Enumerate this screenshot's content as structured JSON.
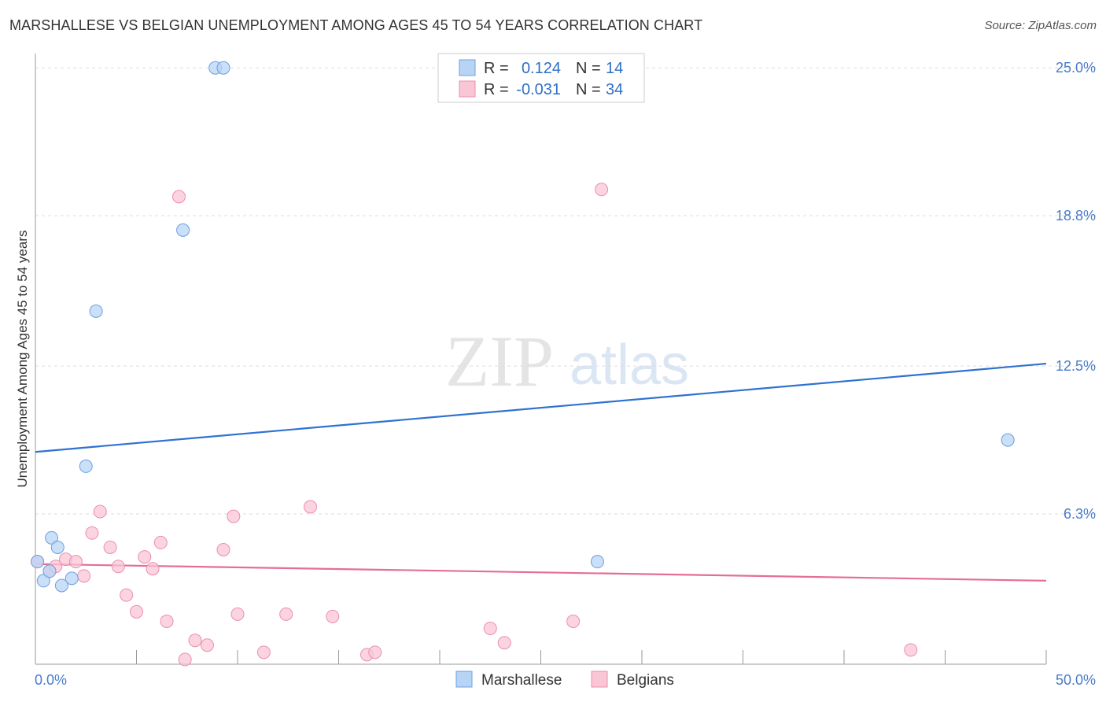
{
  "title": "MARSHALLESE VS BELGIAN UNEMPLOYMENT AMONG AGES 45 TO 54 YEARS CORRELATION CHART",
  "source": "Source: ZipAtlas.com",
  "watermark": {
    "zip": "ZIP",
    "atlas": "atlas"
  },
  "colors": {
    "marshallese_fill": "#b8d4f5",
    "marshallese_stroke": "#6c9fe0",
    "marshallese_line": "#2f72d0",
    "belgians_fill": "#f9c6d6",
    "belgians_stroke": "#eb8fae",
    "belgians_line": "#e46e98",
    "grid": "#dddddd",
    "tick_text": "#4a7cc9"
  },
  "legend": {
    "rows": [
      {
        "r_label": "R =",
        "r_value": "0.124",
        "n_label": "N =",
        "n_value": "14"
      },
      {
        "r_label": "R =",
        "r_value": "-0.031",
        "n_label": "N =",
        "n_value": "34"
      }
    ]
  },
  "chart_data": {
    "type": "scatter",
    "title": "MARSHALLESE VS BELGIAN UNEMPLOYMENT AMONG AGES 45 TO 54 YEARS CORRELATION CHART",
    "xlabel": "",
    "ylabel": "Unemployment Among Ages 45 to 54 years",
    "xlim": [
      0,
      50
    ],
    "ylim": [
      0,
      25.6
    ],
    "x_tick_labels": [
      "0.0%",
      "50.0%"
    ],
    "y_ticks": [
      6.3,
      12.5,
      18.8,
      25.0
    ],
    "y_tick_labels": [
      "6.3%",
      "12.5%",
      "18.8%",
      "25.0%"
    ],
    "series": [
      {
        "name": "Marshallese",
        "r": 0.124,
        "n": 14,
        "trend": {
          "x": [
            0,
            50
          ],
          "y": [
            8.9,
            12.6
          ]
        },
        "points": [
          {
            "x": 0.1,
            "y": 4.3
          },
          {
            "x": 0.4,
            "y": 3.5
          },
          {
            "x": 0.7,
            "y": 3.9
          },
          {
            "x": 0.8,
            "y": 5.3
          },
          {
            "x": 1.1,
            "y": 4.9
          },
          {
            "x": 1.3,
            "y": 3.3
          },
          {
            "x": 1.8,
            "y": 3.6
          },
          {
            "x": 2.5,
            "y": 8.3
          },
          {
            "x": 3.0,
            "y": 14.8
          },
          {
            "x": 7.3,
            "y": 18.2
          },
          {
            "x": 8.9,
            "y": 25.0
          },
          {
            "x": 9.3,
            "y": 25.0
          },
          {
            "x": 27.8,
            "y": 4.3
          },
          {
            "x": 48.1,
            "y": 9.4
          }
        ]
      },
      {
        "name": "Belgians",
        "r": -0.031,
        "n": 34,
        "trend": {
          "x": [
            0,
            50
          ],
          "y": [
            4.2,
            3.5
          ]
        },
        "points": [
          {
            "x": 0.1,
            "y": 4.3
          },
          {
            "x": 0.7,
            "y": 3.9
          },
          {
            "x": 1.0,
            "y": 4.1
          },
          {
            "x": 1.5,
            "y": 4.4
          },
          {
            "x": 2.0,
            "y": 4.3
          },
          {
            "x": 2.4,
            "y": 3.7
          },
          {
            "x": 2.8,
            "y": 5.5
          },
          {
            "x": 3.2,
            "y": 6.4
          },
          {
            "x": 3.7,
            "y": 4.9
          },
          {
            "x": 4.1,
            "y": 4.1
          },
          {
            "x": 4.5,
            "y": 2.9
          },
          {
            "x": 5.0,
            "y": 2.2
          },
          {
            "x": 5.4,
            "y": 4.5
          },
          {
            "x": 5.8,
            "y": 4.0
          },
          {
            "x": 6.2,
            "y": 5.1
          },
          {
            "x": 6.5,
            "y": 1.8
          },
          {
            "x": 7.1,
            "y": 19.6
          },
          {
            "x": 7.4,
            "y": 0.2
          },
          {
            "x": 7.9,
            "y": 1.0
          },
          {
            "x": 8.5,
            "y": 0.8
          },
          {
            "x": 9.3,
            "y": 4.8
          },
          {
            "x": 9.8,
            "y": 6.2
          },
          {
            "x": 10.0,
            "y": 2.1
          },
          {
            "x": 11.3,
            "y": 0.5
          },
          {
            "x": 12.4,
            "y": 2.1
          },
          {
            "x": 13.6,
            "y": 6.6
          },
          {
            "x": 14.7,
            "y": 2.0
          },
          {
            "x": 16.4,
            "y": 0.4
          },
          {
            "x": 16.8,
            "y": 0.5
          },
          {
            "x": 22.5,
            "y": 1.5
          },
          {
            "x": 23.2,
            "y": 0.9
          },
          {
            "x": 26.6,
            "y": 1.8
          },
          {
            "x": 28.0,
            "y": 19.9
          },
          {
            "x": 43.3,
            "y": 0.6
          }
        ]
      }
    ],
    "legend": [
      "Marshallese",
      "Belgians"
    ]
  }
}
